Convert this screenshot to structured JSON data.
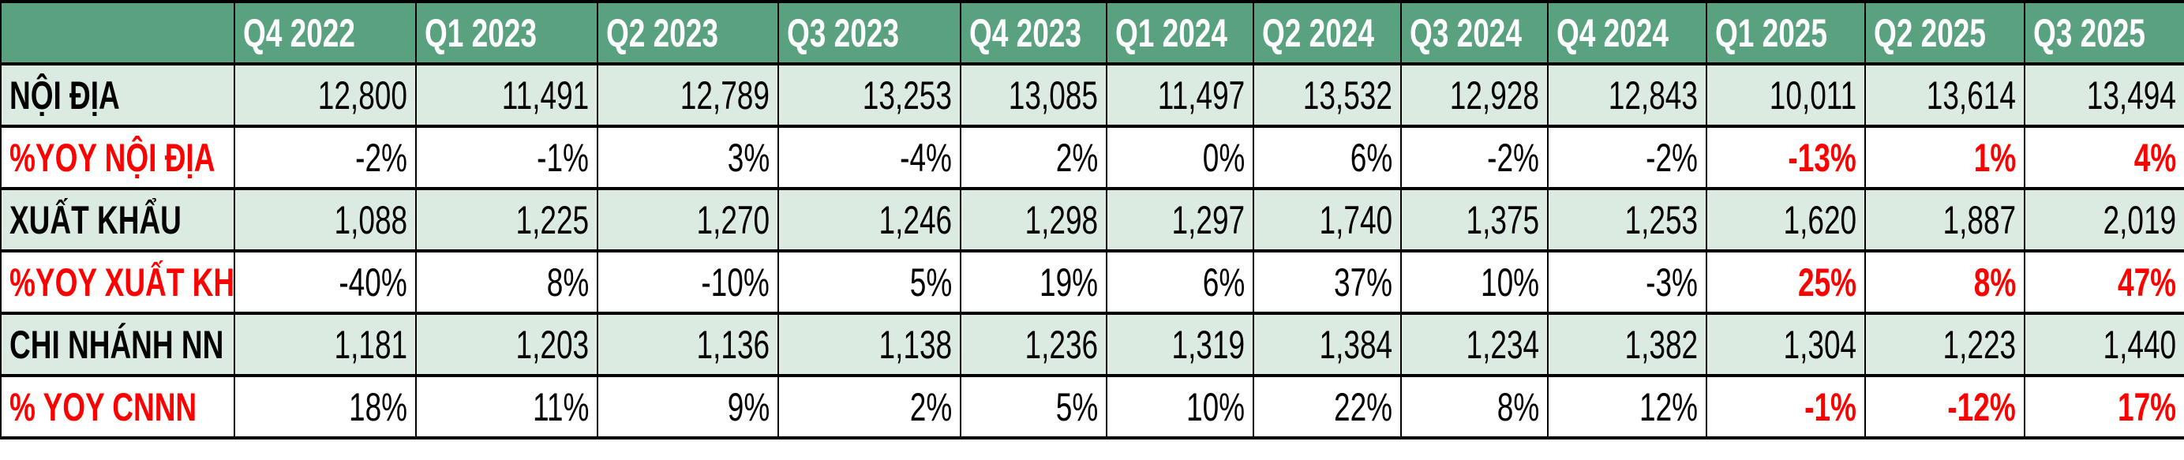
{
  "colors": {
    "header_bg": "#5aa27f",
    "header_text": "#ffffff",
    "shaded_row_bg": "#dcebe2",
    "highlight_text": "#ff0000"
  },
  "table": {
    "corner": "",
    "columns": [
      "Q4 2022",
      "Q1 2023",
      "Q2 2023",
      "Q3 2023",
      "Q4 2023",
      "Q1 2024",
      "Q2 2024",
      "Q3 2024",
      "Q4 2024",
      "Q1 2025",
      "Q2 2025",
      "Q3 2025"
    ],
    "rows": [
      {
        "label": "NỘI ĐỊA",
        "label_red": false,
        "shaded": true,
        "values": [
          "12,800",
          "11,491",
          "12,789",
          "13,253",
          "13,085",
          "11,497",
          "13,532",
          "12,928",
          "12,843",
          "10,011",
          "13,614",
          "13,494"
        ],
        "highlight": [
          false,
          false,
          false,
          false,
          false,
          false,
          false,
          false,
          false,
          false,
          false,
          false
        ]
      },
      {
        "label": "%YOY NỘI ĐỊA",
        "label_red": true,
        "shaded": false,
        "values": [
          "-2%",
          "-1%",
          "3%",
          "-4%",
          "2%",
          "0%",
          "6%",
          "-2%",
          "-2%",
          "-13%",
          "1%",
          "4%"
        ],
        "highlight": [
          false,
          false,
          false,
          false,
          false,
          false,
          false,
          false,
          false,
          true,
          true,
          true
        ]
      },
      {
        "label": "XUẤT KHẨU",
        "label_red": false,
        "shaded": true,
        "values": [
          "1,088",
          "1,225",
          "1,270",
          "1,246",
          "1,298",
          "1,297",
          "1,740",
          "1,375",
          "1,253",
          "1,620",
          "1,887",
          "2,019"
        ],
        "highlight": [
          false,
          false,
          false,
          false,
          false,
          false,
          false,
          false,
          false,
          false,
          false,
          false
        ]
      },
      {
        "label": "%YOY XUẤT KHẨU",
        "label_red": true,
        "shaded": false,
        "values": [
          "-40%",
          "8%",
          "-10%",
          "5%",
          "19%",
          "6%",
          "37%",
          "10%",
          "-3%",
          "25%",
          "8%",
          "47%"
        ],
        "highlight": [
          false,
          false,
          false,
          false,
          false,
          false,
          false,
          false,
          false,
          true,
          true,
          true
        ]
      },
      {
        "label": "CHI NHÁNH NN",
        "label_red": false,
        "shaded": true,
        "values": [
          "1,181",
          "1,203",
          "1,136",
          "1,138",
          "1,236",
          "1,319",
          "1,384",
          "1,234",
          "1,382",
          "1,304",
          "1,223",
          "1,440"
        ],
        "highlight": [
          false,
          false,
          false,
          false,
          false,
          false,
          false,
          false,
          false,
          false,
          false,
          false
        ]
      },
      {
        "label": "% YOY CNNN",
        "label_red": true,
        "shaded": false,
        "values": [
          "18%",
          "11%",
          "9%",
          "2%",
          "5%",
          "10%",
          "22%",
          "8%",
          "12%",
          "-1%",
          "-12%",
          "17%"
        ],
        "highlight": [
          false,
          false,
          false,
          false,
          false,
          false,
          false,
          false,
          false,
          true,
          true,
          true
        ]
      }
    ]
  }
}
